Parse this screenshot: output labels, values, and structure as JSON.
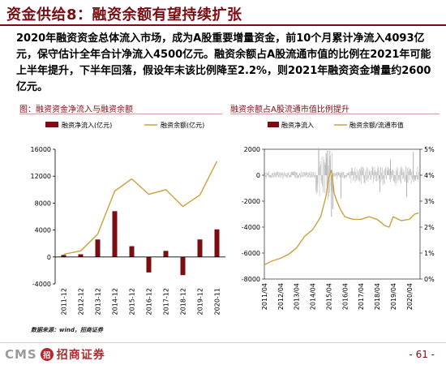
{
  "header": {
    "title": "资金供给8：融资余额有望持续扩张"
  },
  "summary": "2020年融资资金总体流入市场，成为A股重要增量资金，前10个月累计净流入4093亿元，保守估计全年合计净流入4500亿元。融资余额占A股流通市值的比例在2021年可能上半年提升，下半年回落，假设年末该比例降至2.2%，则2021年融资资金增量约2600亿元。",
  "colors": {
    "brand": "#7b0d12",
    "bar": "#7b0d12",
    "line": "#c9a23c"
  },
  "chart_data": [
    {
      "type": "bar+line",
      "title": "图：融资资金净流入与融资余额",
      "categories": [
        "2011-12",
        "2012-12",
        "2013-12",
        "2014-12",
        "2015-12",
        "2016-12",
        "2017-12",
        "2018-12",
        "2019-12",
        "2020-11"
      ],
      "series": [
        {
          "name": "融资净流入(亿元)",
          "type": "bar",
          "values": [
            300,
            400,
            2600,
            6800,
            1600,
            -2300,
            900,
            -2700,
            2600,
            4100
          ]
        },
        {
          "name": "融资余额(亿元)",
          "type": "line",
          "values": [
            400,
            900,
            3400,
            9800,
            11600,
            9300,
            10000,
            7500,
            9200,
            14200
          ]
        }
      ],
      "yticks": [
        "16000",
        "12000",
        "8000",
        "4000",
        "0",
        "-4000"
      ],
      "ylim": [
        -4000,
        16000
      ],
      "legend": "top-center",
      "grid": false
    },
    {
      "type": "line",
      "title": "融资余额占A股流通市值比例提升",
      "x_ticks": [
        "2011/04",
        "2012/04",
        "2013/04",
        "2014/04",
        "2015/04",
        "2016/04",
        "2017/04",
        "2018/04",
        "2019/04",
        "2020/04"
      ],
      "series": [
        {
          "name": "融资净流入",
          "axis": "left",
          "type": "bar",
          "style": "gray-spikes"
        },
        {
          "name": "融资余额/流通市值",
          "axis": "right",
          "type": "line"
        }
      ],
      "yticks_left": [
        "2000",
        "0",
        "-2000",
        "-4000",
        "-6000",
        "-8000"
      ],
      "yticks_right": [
        "5%",
        "4%",
        "3%",
        "2%",
        "1%",
        "0%"
      ],
      "ylim_left": [
        -8000,
        2000
      ],
      "ylim_right": [
        0,
        5
      ],
      "line_points": [
        [
          "2011/04",
          0.55
        ],
        [
          "2011/10",
          0.7
        ],
        [
          "2012/04",
          0.8
        ],
        [
          "2012/10",
          0.95
        ],
        [
          "2013/04",
          1.2
        ],
        [
          "2013/10",
          1.65
        ],
        [
          "2014/04",
          1.9
        ],
        [
          "2014/10",
          2.4
        ],
        [
          "2015/02",
          3.2
        ],
        [
          "2015/04",
          3.9
        ],
        [
          "2015/06",
          4.2
        ],
        [
          "2015/08",
          3.3
        ],
        [
          "2015/10",
          3.0
        ],
        [
          "2016/01",
          2.65
        ],
        [
          "2016/04",
          2.4
        ],
        [
          "2016/10",
          2.3
        ],
        [
          "2017/04",
          2.3
        ],
        [
          "2017/10",
          2.4
        ],
        [
          "2018/04",
          2.3
        ],
        [
          "2018/10",
          2.05
        ],
        [
          "2019/01",
          2.0
        ],
        [
          "2019/04",
          2.4
        ],
        [
          "2019/10",
          2.25
        ],
        [
          "2020/04",
          2.3
        ],
        [
          "2020/08",
          2.5
        ],
        [
          "2020/11",
          2.55
        ]
      ],
      "legend": "top",
      "grid": false
    }
  ],
  "footer": {
    "source": "数据来源：wind，招商证券",
    "logo_text": "CMS",
    "logo_badge": "招",
    "logo_cn": "招商证券",
    "page": "- 61 -"
  }
}
